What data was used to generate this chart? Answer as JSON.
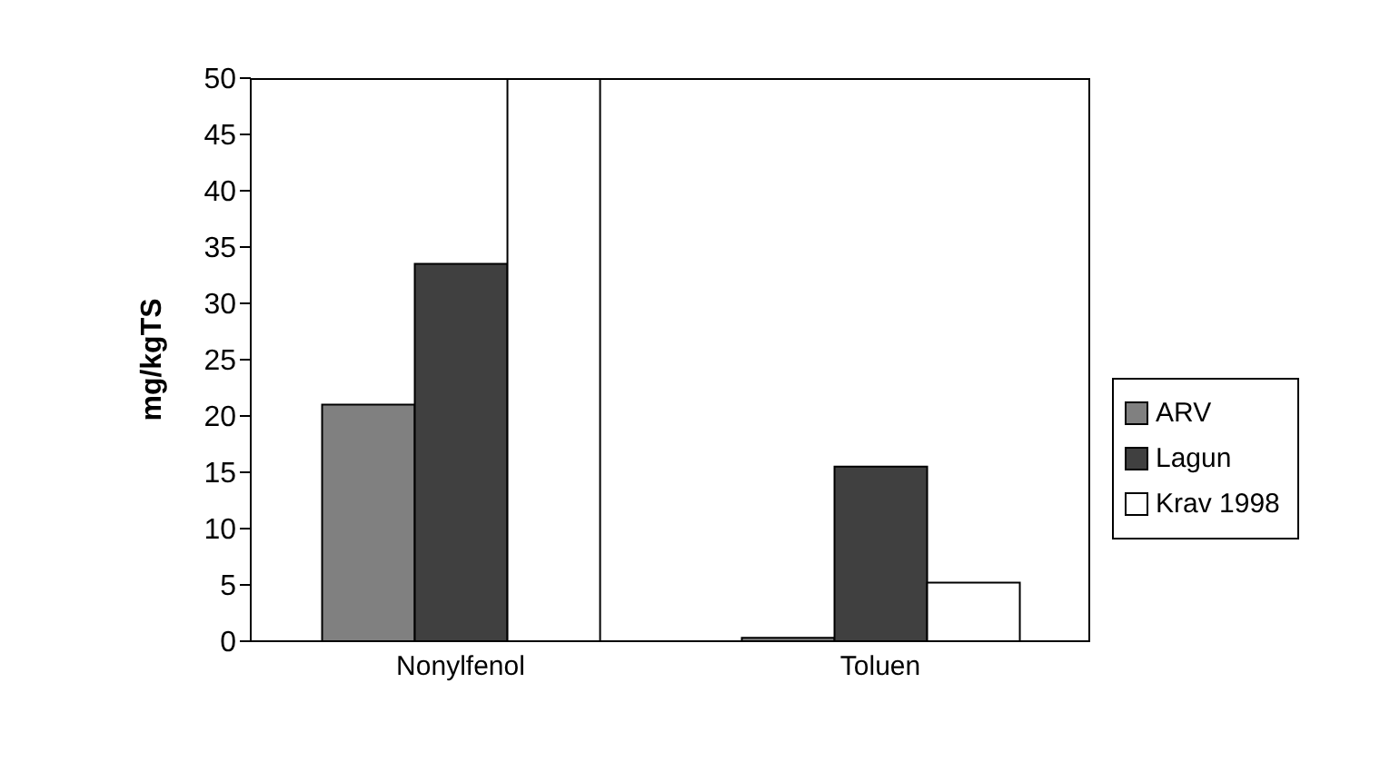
{
  "chart_data": {
    "type": "bar",
    "ylabel": "mg/kgTS",
    "categories": [
      "Nonylfenol",
      "Toluen"
    ],
    "series": [
      {
        "name": "ARV",
        "color": "#808080",
        "values": [
          21,
          0.3
        ]
      },
      {
        "name": "Lagun",
        "color": "#404040",
        "values": [
          33.5,
          15.5
        ]
      },
      {
        "name": "Krav 1998",
        "color": "#ffffff",
        "values": [
          50,
          5.2
        ]
      }
    ],
    "ylim": [
      0,
      50
    ],
    "yticks": [
      0,
      5,
      10,
      15,
      20,
      25,
      30,
      35,
      40,
      45,
      50
    ],
    "legend": "right"
  }
}
